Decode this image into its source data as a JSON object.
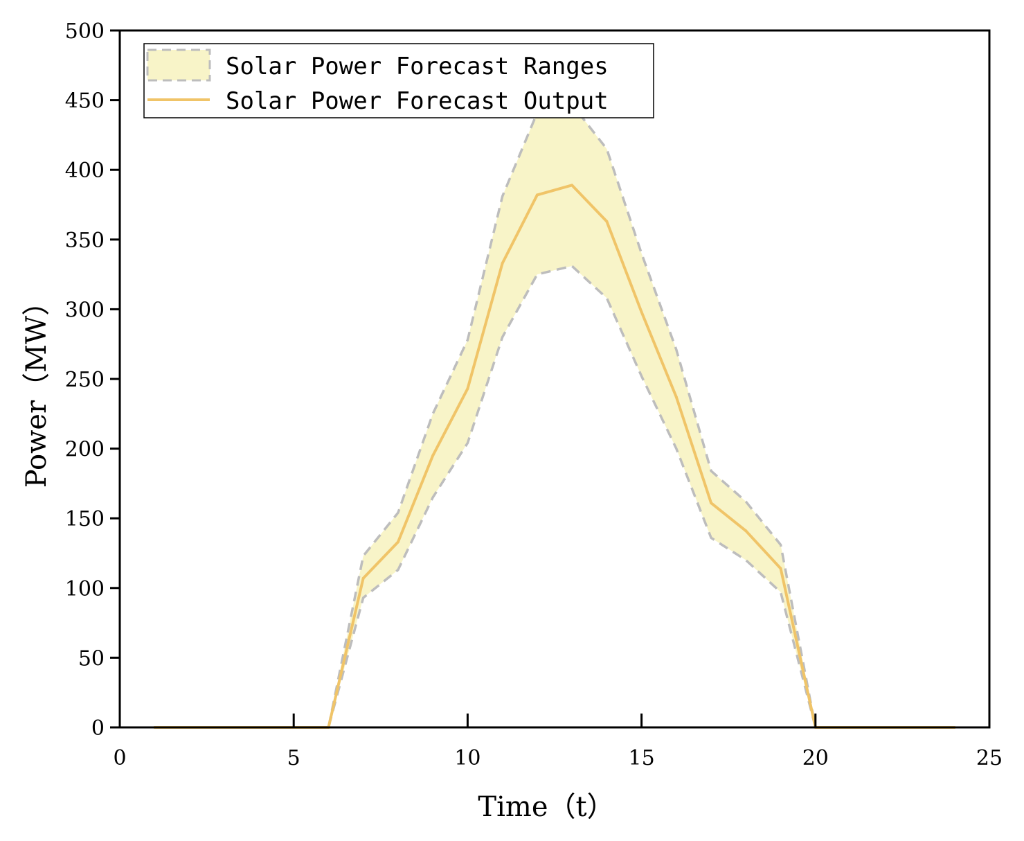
{
  "chart_data": {
    "type": "line",
    "title": "",
    "xlabel": "Time（t）",
    "ylabel": "Power（MW）",
    "xlim": [
      0,
      25
    ],
    "ylim": [
      0,
      500
    ],
    "xticks": [
      0,
      5,
      10,
      15,
      20,
      25
    ],
    "yticks": [
      0,
      50,
      100,
      150,
      200,
      250,
      300,
      350,
      400,
      450,
      500
    ],
    "grid": false,
    "legend_position": "top-left",
    "x": [
      1,
      2,
      3,
      4,
      5,
      6,
      7,
      8,
      9,
      10,
      11,
      12,
      13,
      14,
      15,
      16,
      17,
      18,
      19,
      20,
      21,
      22,
      23,
      24
    ],
    "series": [
      {
        "name": "Solar Power Forecast Ranges",
        "kind": "band",
        "color": "#F8F4C8",
        "edge_color": "#BDBDBD",
        "upper": [
          0,
          0,
          0,
          0,
          0,
          0,
          123,
          154,
          225,
          278,
          381,
          441,
          447,
          415,
          340,
          271,
          184,
          162,
          131,
          0,
          0,
          0,
          0,
          0
        ],
        "lower": [
          0,
          0,
          0,
          0,
          0,
          0,
          93,
          113,
          165,
          204,
          280,
          325,
          331,
          308,
          252,
          200,
          136,
          120,
          97,
          0,
          0,
          0,
          0,
          0
        ]
      },
      {
        "name": "Solar Power Forecast Output",
        "kind": "line",
        "color": "#F0C468",
        "values": [
          0,
          0,
          0,
          0,
          0,
          0,
          107,
          133,
          195,
          243,
          333,
          382,
          389,
          363,
          298,
          237,
          161,
          141,
          114,
          0,
          0,
          0,
          0,
          0
        ]
      }
    ]
  }
}
